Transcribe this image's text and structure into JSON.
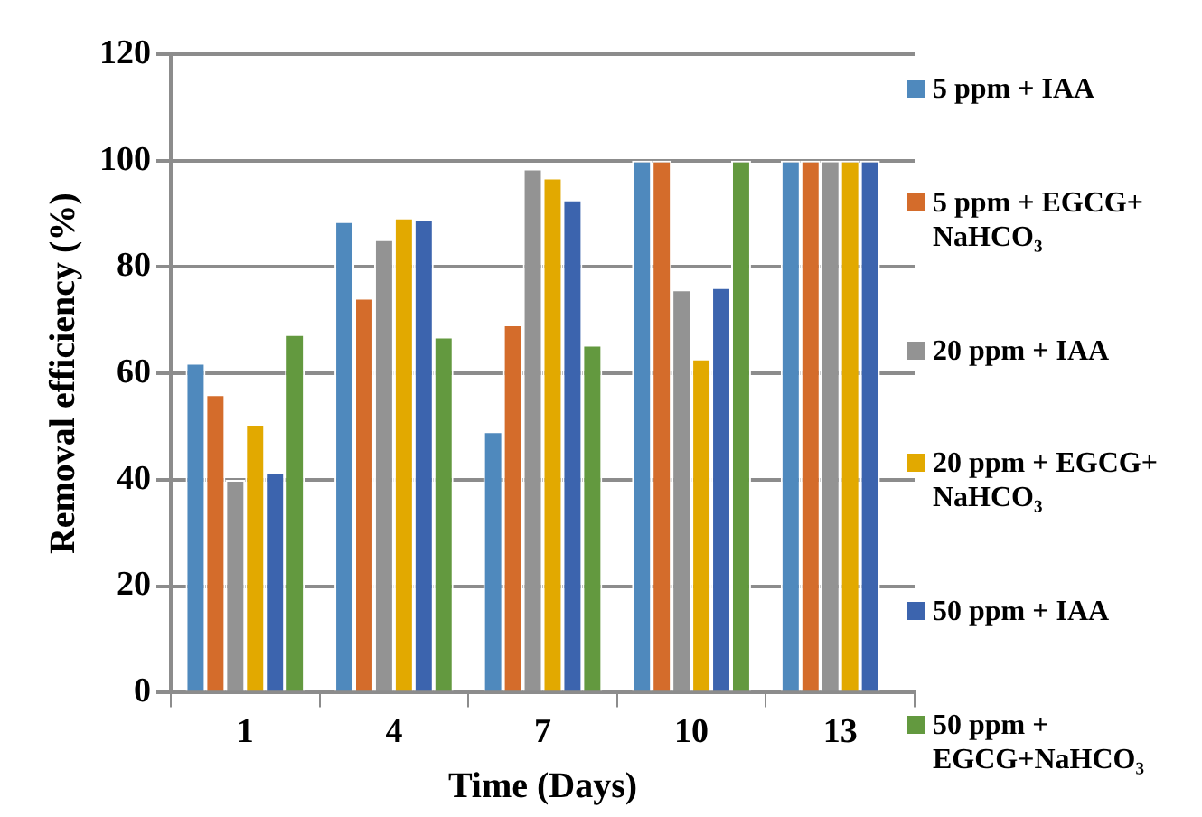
{
  "chart_data": {
    "type": "bar",
    "xlabel": "Time (Days)",
    "ylabel": "Removal efficiency (%)",
    "categories": [
      "1",
      "4",
      "7",
      "10",
      "13"
    ],
    "series": [
      {
        "name": "5 ppm + IAA",
        "color": "#4f89bd",
        "values": [
          62,
          88.6,
          49.1,
          100,
          100
        ]
      },
      {
        "name": "5 ppm + EGCG+ NaHCO₃",
        "color": "#d46c2b",
        "values": [
          56.1,
          74.2,
          69.2,
          100,
          100
        ]
      },
      {
        "name": "20 ppm + IAA",
        "color": "#939393",
        "values": [
          40,
          85.2,
          98.5,
          75.8,
          100
        ]
      },
      {
        "name": "20 ppm + EGCG+ NaHCO₃",
        "color": "#e2a900",
        "values": [
          50.5,
          89.3,
          96.8,
          62.8,
          100
        ]
      },
      {
        "name": "50 ppm + IAA",
        "color": "#3c64ae",
        "values": [
          41.4,
          89.1,
          92.7,
          76.2,
          100
        ]
      },
      {
        "name": "50 ppm + EGCG+NaHCO₃",
        "color": "#63993f",
        "values": [
          67.4,
          66.9,
          65.4,
          100,
          null
        ]
      }
    ],
    "ylim": [
      0,
      120
    ],
    "yticks": [
      0,
      20,
      40,
      60,
      80,
      100,
      120
    ],
    "grid": "y",
    "legend": "right"
  }
}
